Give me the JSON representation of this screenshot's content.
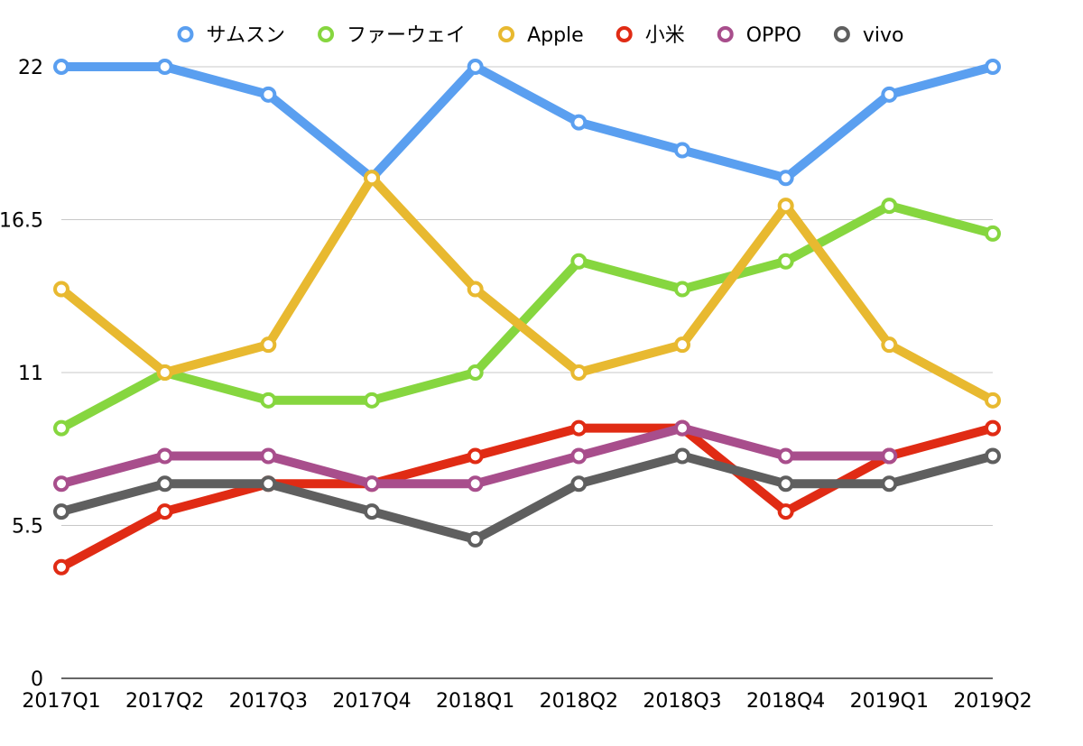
{
  "chart_data": {
    "type": "line",
    "categories": [
      "2017Q1",
      "2017Q2",
      "2017Q3",
      "2017Q4",
      "2018Q1",
      "2018Q2",
      "2018Q3",
      "2018Q4",
      "2019Q1",
      "2019Q2"
    ],
    "series": [
      {
        "name": "サムスン",
        "color": "#5a9ff0",
        "values": [
          22,
          22,
          21,
          18,
          22,
          20,
          19,
          18,
          21,
          22
        ]
      },
      {
        "name": "ファーウェイ",
        "color": "#86d63f",
        "values": [
          9,
          11,
          10,
          10,
          11,
          15,
          14,
          15,
          17,
          16
        ]
      },
      {
        "name": "Apple",
        "color": "#e8b930",
        "values": [
          14,
          11,
          12,
          18,
          14,
          11,
          12,
          17,
          12,
          10
        ]
      },
      {
        "name": "小米",
        "color": "#e02b14",
        "values": [
          4,
          6,
          7,
          7,
          8,
          9,
          9,
          6,
          8,
          9
        ]
      },
      {
        "name": "OPPO",
        "color": "#a84e8c",
        "values": [
          7,
          8,
          8,
          7,
          7,
          8,
          9,
          8,
          8,
          null
        ]
      },
      {
        "name": "vivo",
        "color": "#5f5f5f",
        "values": [
          6,
          7,
          7,
          6,
          5,
          7,
          8,
          7,
          7,
          8
        ]
      }
    ],
    "y_ticks": [
      "0",
      "5.5",
      "11",
      "16.5",
      "22"
    ],
    "ylim": [
      0,
      22
    ],
    "grid": true,
    "legend_position": "top"
  }
}
